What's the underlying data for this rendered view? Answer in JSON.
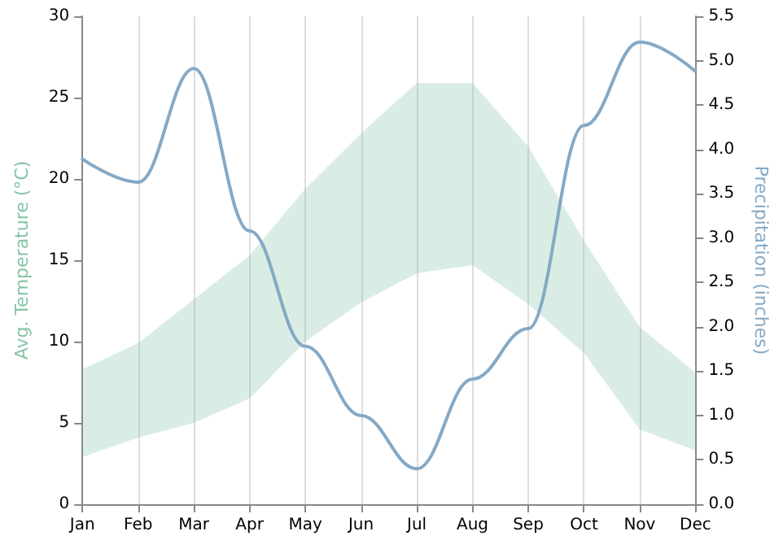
{
  "chart_data": {
    "type": "line",
    "categories": [
      "Jan",
      "Feb",
      "Mar",
      "Apr",
      "May",
      "Jun",
      "Jul",
      "Aug",
      "Sep",
      "Oct",
      "Nov",
      "Dec"
    ],
    "ylabel": "Avg. Temperature (°C)",
    "y2label": "Precipitation (inches)",
    "ylim": [
      0,
      30
    ],
    "yticks": [
      0,
      5,
      10,
      15,
      20,
      25,
      30
    ],
    "y2lim": [
      0,
      5.5
    ],
    "y2ticks": [
      {
        "value": 0,
        "label": "0.0"
      },
      0.5,
      {
        "value": 1,
        "label": "1.0"
      },
      1.5,
      {
        "value": 2,
        "label": "2.0"
      },
      2.5,
      {
        "value": 3,
        "label": "3.0"
      },
      3.5,
      {
        "value": 4,
        "label": "4.0"
      },
      4.5,
      {
        "value": 5,
        "label": "5.0"
      },
      5.5
    ],
    "grid": "x",
    "marker": "none",
    "line_style": "solid",
    "series": [
      {
        "type": "area",
        "color": "#85c5a6",
        "values": [
          null,
          null,
          null,
          null,
          null,
          null,
          null,
          null,
          null,
          null,
          null,
          null
        ],
        "upper": [
          8.3,
          9.9,
          12.6,
          15.3,
          19.4,
          22.8,
          25.9,
          25.9,
          22.0,
          16.2,
          10.9,
          8.1
        ],
        "lower": [
          2.9,
          4.1,
          5.0,
          6.5,
          10.0,
          12.4,
          14.2,
          14.7,
          12.3,
          9.3,
          4.6,
          3.3
        ]
      },
      {
        "axis": "y2",
        "color": "#85a9c5",
        "values": [
          3.89,
          3.63,
          4.91,
          3.08,
          1.78,
          1.0,
          0.4,
          1.41,
          1.98,
          4.27,
          5.21,
          4.88
        ]
      }
    ]
  }
}
